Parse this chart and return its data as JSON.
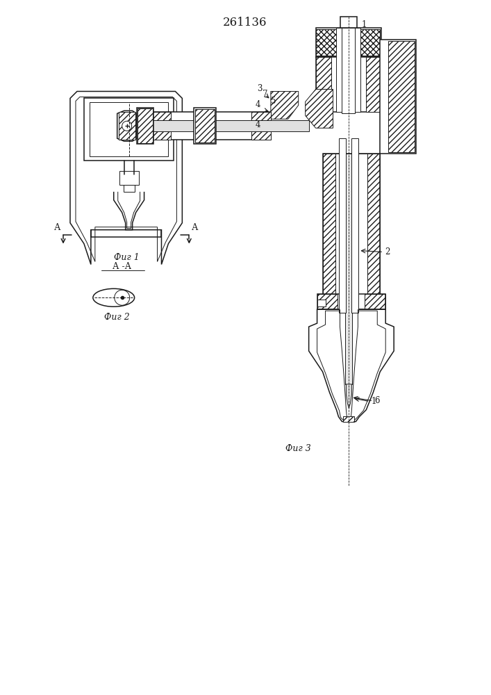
{
  "title": "261136",
  "bg": "#ffffff",
  "lc": "#1a1a1a",
  "fig1_label": "Фиг 1",
  "fig2_label": "Фиг 2",
  "fig3_label": "Фиг 3",
  "section_label": "А -А",
  "A_label": "А"
}
